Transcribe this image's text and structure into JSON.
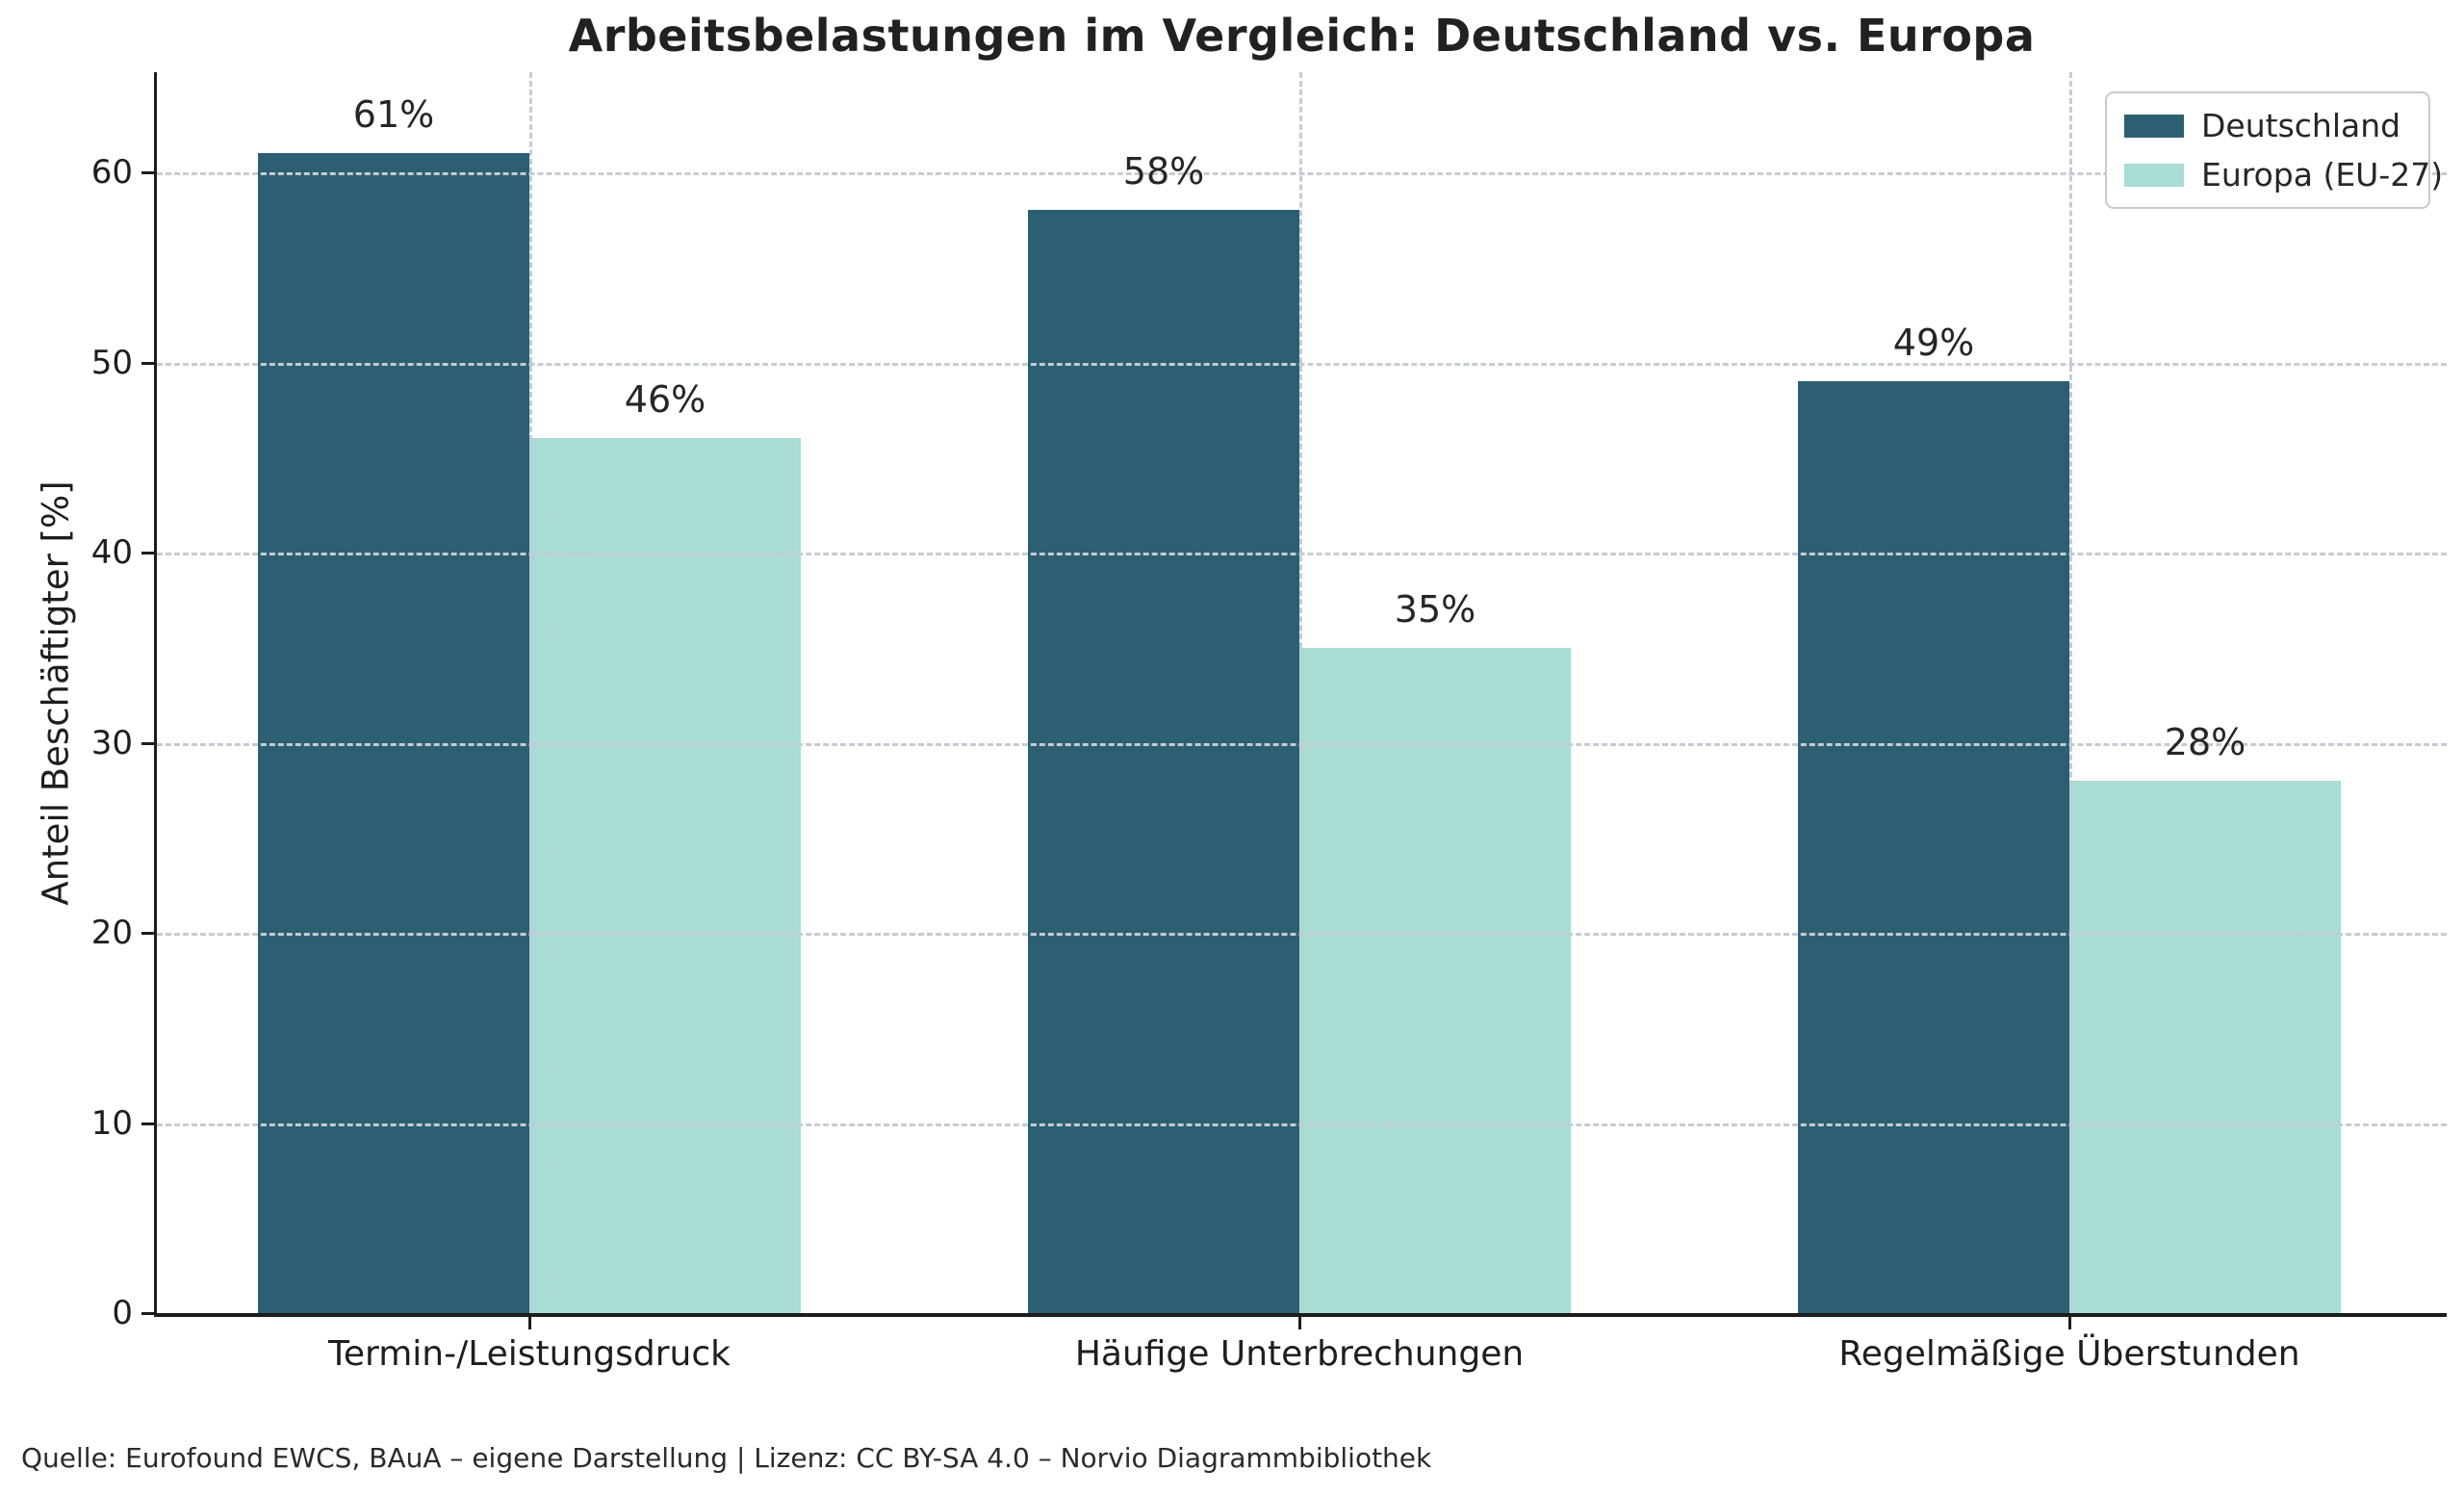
{
  "title": "Arbeitsbelastungen im Vergleich: Deutschland vs. Europa",
  "footer": "Quelle: Eurofound EWCS, BAuA – eigene Darstellung | Lizenz: CC BY-SA 4.0 – Norvio Diagrammbibliothek",
  "chart_data": {
    "type": "bar",
    "title": "Arbeitsbelastungen im Vergleich: Deutschland vs. Europa",
    "categories": [
      "Termin-/Leistungsdruck",
      "Häufige Unterbrechungen",
      "Regelmäßige Überstunden"
    ],
    "series": [
      {
        "name": "Deutschland",
        "color": "#2d5f72",
        "values": [
          61,
          58,
          49
        ]
      },
      {
        "name": "Europa (EU-27)",
        "color": "#a8dcd5",
        "values": [
          46,
          35,
          28
        ]
      }
    ],
    "value_labels": [
      [
        "61%",
        "58%",
        "49%"
      ],
      [
        "46%",
        "35%",
        "28%"
      ]
    ],
    "xlabel": "",
    "ylabel": "Anteil Beschäftigter [%]",
    "yticks": [
      0,
      10,
      20,
      30,
      40,
      50,
      60
    ],
    "ylim": [
      0,
      65
    ],
    "grid": "dashed horizontal at yticks, dashed vertical at category centers",
    "legend_position": "top-right"
  },
  "colors": {
    "series_dark": "#2d5f72",
    "series_light": "#a8dcd5",
    "gridline": "#c6ccd3",
    "spine": "#1c1c1c",
    "text": "#1e1e1e",
    "legend_border": "#c9c9c9",
    "background": "#ffffff"
  }
}
